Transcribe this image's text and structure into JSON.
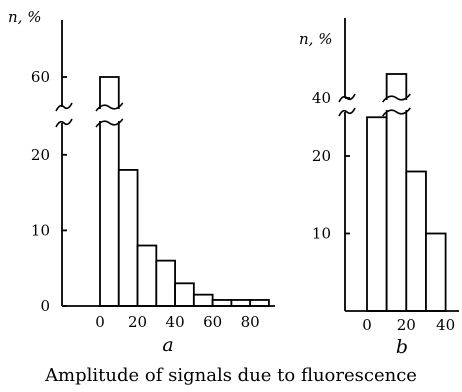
{
  "chart_data": [
    {
      "type": "bar",
      "panel_label": "a",
      "y_axis_label": "n, %",
      "x_tick_labels": [
        "0",
        "20",
        "40",
        "60",
        "80"
      ],
      "y_tick_labels": [
        "0",
        "10",
        "20",
        "60"
      ],
      "axis_break": "between 25 and 55",
      "bin_width": 10,
      "x": [
        5,
        15,
        25,
        35,
        45,
        55,
        65,
        75,
        85
      ],
      "values": [
        60,
        18,
        8,
        6,
        3,
        1.5,
        0.8,
        0.8,
        0.8
      ],
      "xlim": [
        -20,
        95
      ]
    },
    {
      "type": "bar",
      "panel_label": "b",
      "y_axis_label": "n, %",
      "x_tick_labels": [
        "0",
        "20",
        "40"
      ],
      "y_tick_labels": [
        "10",
        "20",
        "40"
      ],
      "axis_break": "between 26 and 35",
      "bin_width": 10,
      "x": [
        5,
        15,
        25,
        35
      ],
      "values": [
        25,
        45,
        18,
        10
      ],
      "xlim": [
        -8,
        47
      ]
    }
  ],
  "caption": "Amplitude of signals due to fluorescence"
}
